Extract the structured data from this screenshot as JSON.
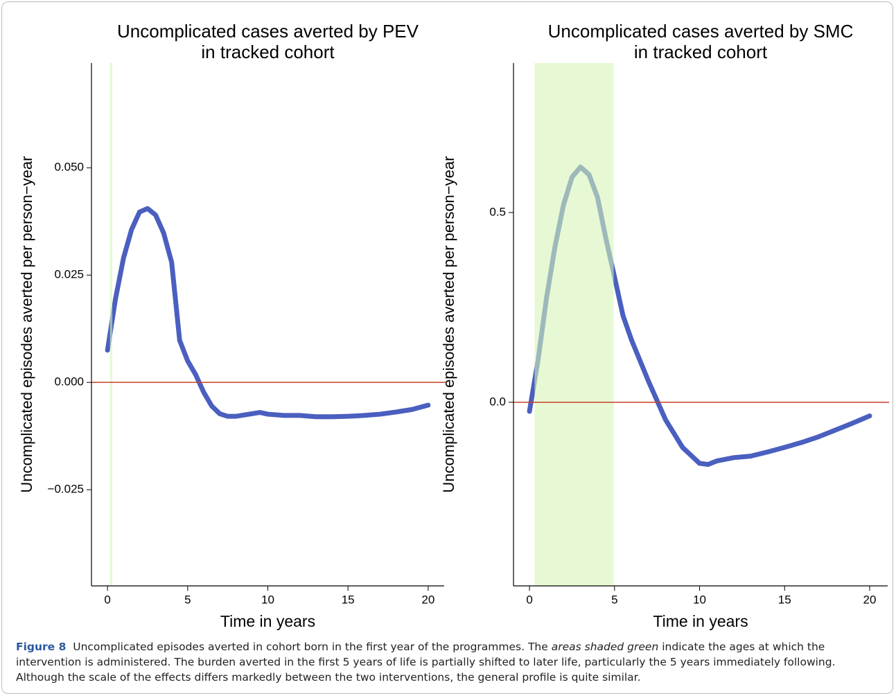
{
  "chart_data": [
    {
      "type": "line",
      "title": [
        "Uncomplicated cases averted by PEV",
        "in tracked cohort"
      ],
      "x_label": "Time in years",
      "y_label": "Uncomplicated episodes averted per person−year",
      "x": [
        0,
        0.5,
        1,
        1.5,
        2,
        2.5,
        3,
        3.5,
        4,
        4.5,
        5,
        5.5,
        6,
        6.5,
        7,
        7.5,
        8,
        9,
        9.5,
        10,
        11,
        12,
        13,
        14,
        15,
        16,
        17,
        18,
        19,
        20
      ],
      "values": [
        0.0075,
        0.0195,
        0.029,
        0.0356,
        0.0397,
        0.0405,
        0.039,
        0.0348,
        0.028,
        0.0098,
        0.005,
        0.0018,
        -0.0023,
        -0.0055,
        -0.0073,
        -0.0079,
        -0.0079,
        -0.0073,
        -0.007,
        -0.0074,
        -0.0077,
        -0.0077,
        -0.008,
        -0.008,
        -0.0079,
        -0.0077,
        -0.0074,
        -0.0069,
        -0.0063,
        -0.0053
      ],
      "color": "#4a5fbf",
      "xlim": [
        -1,
        21
      ],
      "ylim": [
        -0.0474,
        0.0744
      ],
      "xticks": [
        0,
        5,
        10,
        15,
        20
      ],
      "yticks": [
        {
          "value": -0.025,
          "label": "−0.025"
        },
        {
          "value": 0,
          "label": "0.000"
        },
        {
          "value": 0.025,
          "label": "0.025"
        },
        {
          "value": 0.05,
          "label": "0.050"
        }
      ],
      "hline": 0,
      "hline_color": "#c8402a",
      "shade": [
        0.15,
        0.3
      ],
      "shade_color": "#d6f5b8"
    },
    {
      "type": "line",
      "title": [
        "Uncomplicated cases averted by SMC",
        "in tracked cohort"
      ],
      "x_label": "Time in years",
      "y_label": "Uncomplicated episodes averted per person−year",
      "x": [
        0,
        0.5,
        1,
        1.5,
        2,
        2.5,
        3,
        3.5,
        4,
        4.5,
        5,
        5.5,
        6,
        7,
        8,
        9,
        10,
        10.5,
        11,
        12,
        13,
        14,
        15,
        16,
        17,
        18,
        19,
        20
      ],
      "values": [
        -0.024,
        0.11,
        0.274,
        0.41,
        0.52,
        0.593,
        0.62,
        0.6,
        0.54,
        0.43,
        0.33,
        0.228,
        0.164,
        0.055,
        -0.046,
        -0.119,
        -0.161,
        -0.164,
        -0.155,
        -0.146,
        -0.142,
        -0.131,
        -0.119,
        -0.106,
        -0.091,
        -0.073,
        -0.055,
        -0.036
      ],
      "color": "#4a5fbf",
      "xlim": [
        -0.94,
        21.06
      ],
      "ylim": [
        -0.484,
        0.894
      ],
      "xticks": [
        0,
        5,
        10,
        15,
        20
      ],
      "yticks": [
        {
          "value": 0,
          "label": "0.0"
        },
        0.5
      ],
      "hline": 0,
      "hline_color": "#c8402a",
      "shade": [
        0.3,
        4.95
      ],
      "shade_color": "#d6f5b8"
    }
  ],
  "caption": {
    "label": "Figure 8",
    "text_1": "Uncomplicated episodes averted in cohort born in the first year of the programmes. The",
    "emphasis": "areas shaded green",
    "text_2": "indicate the ages at which the intervention is administered. The burden averted in the first 5 years of life is partially shifted to later life, particularly the 5 years immediately following. Although the scale of the effects differs markedly between the two interventions, the general profile is quite similar."
  }
}
